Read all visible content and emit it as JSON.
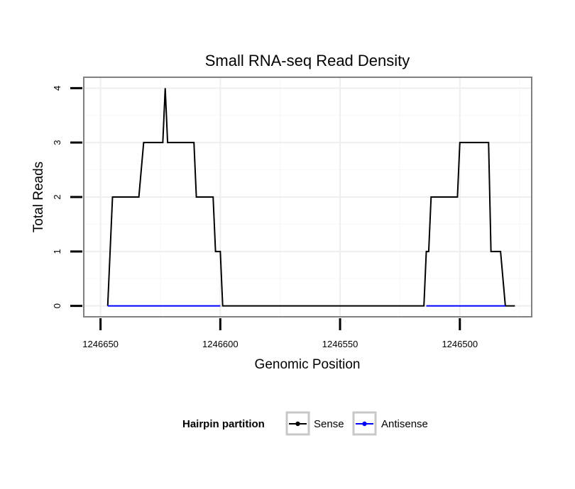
{
  "chart_data": {
    "type": "line",
    "title": "Small RNA-seq Read Density",
    "xlabel": "Genomic Position",
    "ylabel": "Total Reads",
    "x_reversed": true,
    "xlim": [
      1246657,
      1246470
    ],
    "ylim": [
      -0.2,
      4.2
    ],
    "x_ticks": [
      1246650,
      1246600,
      1246550,
      1246500
    ],
    "x_tick_labels": [
      "1246650",
      "1246600",
      "1246550",
      "1246500"
    ],
    "y_ticks": [
      0,
      1,
      2,
      3,
      4
    ],
    "y_tick_labels": [
      "0",
      "1",
      "2",
      "3",
      "4"
    ],
    "grid": true,
    "legend": {
      "title": "Hairpin partition",
      "position": "bottom"
    },
    "series": [
      {
        "name": "Sense",
        "color": "#000000",
        "x": [
          1246647,
          1246645,
          1246634,
          1246632,
          1246624,
          1246623,
          1246622,
          1246621,
          1246611,
          1246610,
          1246603,
          1246602,
          1246600,
          1246599,
          1246550,
          1246515,
          1246514,
          1246513,
          1246512,
          1246501,
          1246500,
          1246488,
          1246487,
          1246483,
          1246481,
          1246477
        ],
        "y": [
          0,
          2,
          2,
          3,
          3,
          4,
          3,
          3,
          3,
          2,
          2,
          1,
          1,
          0,
          0,
          0,
          1,
          1,
          2,
          2,
          3,
          3,
          1,
          1,
          0,
          0
        ]
      },
      {
        "name": "Antisense",
        "color": "#0000ff",
        "x": [
          1246647,
          1246600,
          1246514,
          1246481
        ],
        "y": [
          0,
          0,
          0,
          0
        ],
        "segments": [
          [
            0,
            1
          ],
          [
            2,
            3
          ]
        ]
      }
    ]
  }
}
